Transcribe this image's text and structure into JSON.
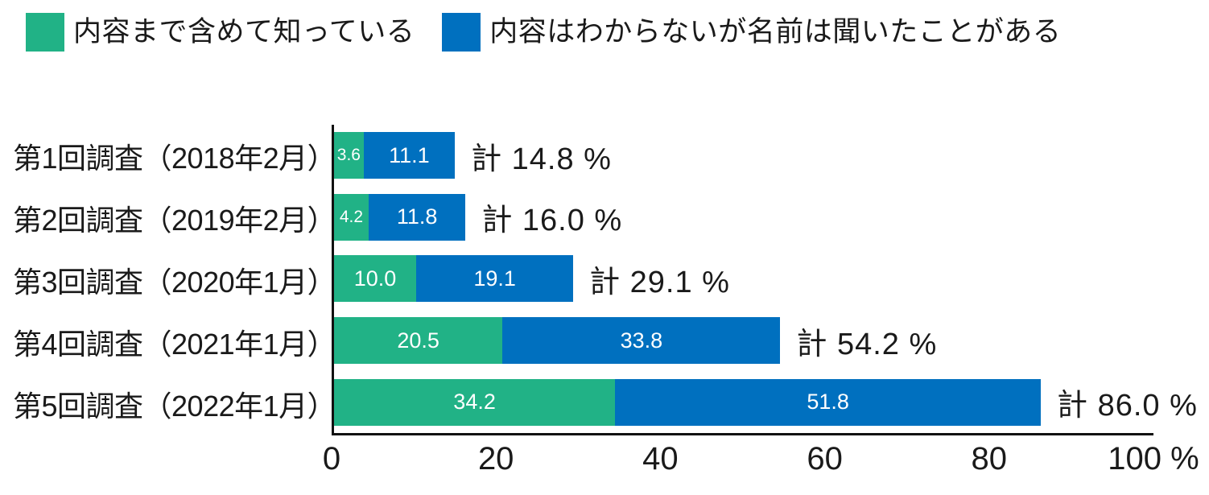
{
  "chart_data": {
    "type": "bar",
    "orientation": "horizontal",
    "stacked": true,
    "title": "",
    "categories": [
      "第1回調査（2018年2月）",
      "第2回調査（2019年2月）",
      "第3回調査（2020年1月）",
      "第4回調査（2021年1月）",
      "第5回調査（2022年1月）"
    ],
    "series": [
      {
        "name": "内容まで含めて知っている",
        "color": "#21b286",
        "values": [
          "3.6",
          "4.2",
          "10.0",
          "20.5",
          "34.2"
        ]
      },
      {
        "name": "内容はわからないが名前は聞いたことがある",
        "color": "#0070bf",
        "values": [
          "11.1",
          "11.8",
          "19.1",
          "33.8",
          "51.8"
        ]
      }
    ],
    "totals": [
      "14.8",
      "16.0",
      "29.1",
      "54.2",
      "86.0"
    ],
    "total_prefix": "計",
    "unit": "%",
    "xlim": [
      0,
      100
    ],
    "x_ticks": [
      {
        "value": 0,
        "label": "0"
      },
      {
        "value": 20,
        "label": "20"
      },
      {
        "value": 40,
        "label": "40"
      },
      {
        "value": 60,
        "label": "60"
      },
      {
        "value": 80,
        "label": "80"
      },
      {
        "value": 100,
        "label": "100 %"
      }
    ],
    "legend_position": "top-left",
    "grid": false,
    "value_label_color": "#ffffff",
    "axis_color": "#111111",
    "text_color": "#1a1a1a"
  }
}
